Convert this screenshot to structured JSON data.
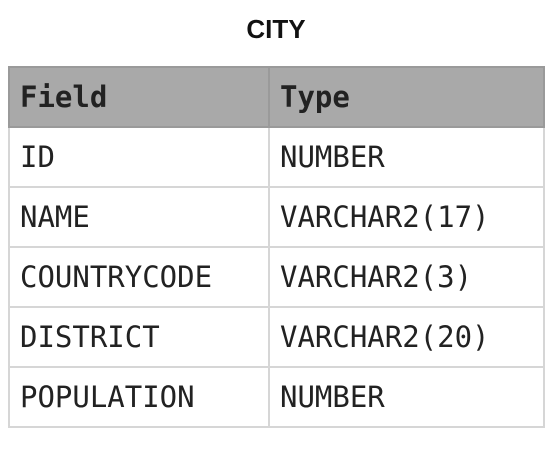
{
  "title": "CITY",
  "table": {
    "header": [
      "Field",
      "Type"
    ],
    "rows": [
      [
        "ID",
        "NUMBER"
      ],
      [
        "NAME",
        "VARCHAR2(17)"
      ],
      [
        "COUNTRYCODE",
        "VARCHAR2(3)"
      ],
      [
        "DISTRICT",
        "VARCHAR2(20)"
      ],
      [
        "POPULATION",
        "NUMBER"
      ]
    ]
  }
}
